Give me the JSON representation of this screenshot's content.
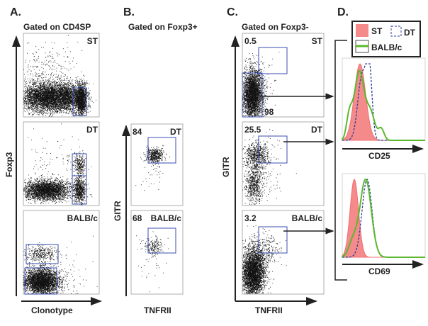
{
  "chart_data": {
    "type": "scatter",
    "panels": [
      {
        "label": "A.",
        "title": "Gated on CD4SP",
        "xlabel": "Clonotype",
        "ylabel": "Foxp3",
        "plots": [
          {
            "name": "ST"
          },
          {
            "name": "DT"
          },
          {
            "name": "BALB/c"
          }
        ]
      },
      {
        "label": "B.",
        "title": "Gated on Foxp3+",
        "xlabel": "TNFRII",
        "ylabel": "GITR",
        "plots": [
          {
            "name": "DT",
            "gate_value": "84"
          },
          {
            "name": "BALB/c",
            "gate_value": "68"
          }
        ]
      },
      {
        "label": "C.",
        "title": "Gated on Foxp3-",
        "xlabel": "TNFRII",
        "ylabel": "GITR",
        "plots": [
          {
            "name": "ST",
            "gate_value": "0.5",
            "gate_value_2": "98"
          },
          {
            "name": "DT",
            "gate_value": "25.5"
          },
          {
            "name": "BALB/c",
            "gate_value": "3.2"
          }
        ]
      },
      {
        "label": "D.",
        "type": "histogram",
        "legend": [
          {
            "name": "ST",
            "color": "#f08080",
            "style": "filled"
          },
          {
            "name": "DT",
            "color": "#2b3f9e",
            "style": "dashed"
          },
          {
            "name": "BALB/c",
            "color": "#5cb82e",
            "style": "solid"
          }
        ],
        "plots": [
          {
            "xlabel": "CD25"
          },
          {
            "xlabel": "CD69"
          }
        ]
      }
    ]
  }
}
